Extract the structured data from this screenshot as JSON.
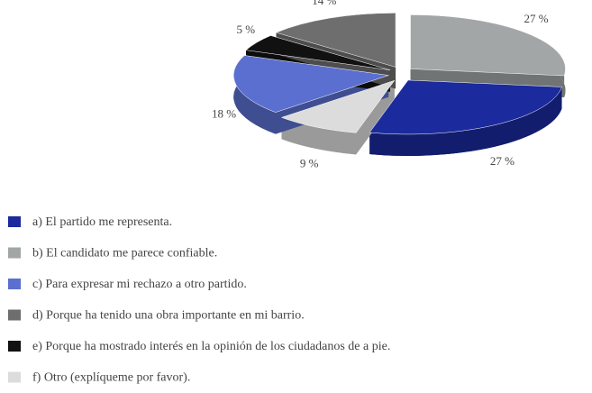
{
  "chart_data": {
    "type": "pie",
    "categories": [
      "a) El partido me representa.",
      "b) El candidato me parece confiable.",
      "c) Para expresar mi rechazo a otro partido.",
      "d) Porque ha tenido una obra importante en mi barrio.",
      "e) Porque ha mostrado interés en la opinión de los ciudadanos de a pie.",
      "f) Otro (explíqueme por favor)."
    ],
    "values": [
      27,
      27,
      18,
      14,
      5,
      9
    ],
    "value_labels": [
      "27 %",
      "27 %",
      "18 %",
      "14 %",
      "5 %",
      "9 %"
    ],
    "colors": [
      "#1b2a9c",
      "#a2a6a6",
      "#5a6fcf",
      "#6e6e6e",
      "#111111",
      "#dcdcdc"
    ],
    "legend": "bottom-left"
  }
}
